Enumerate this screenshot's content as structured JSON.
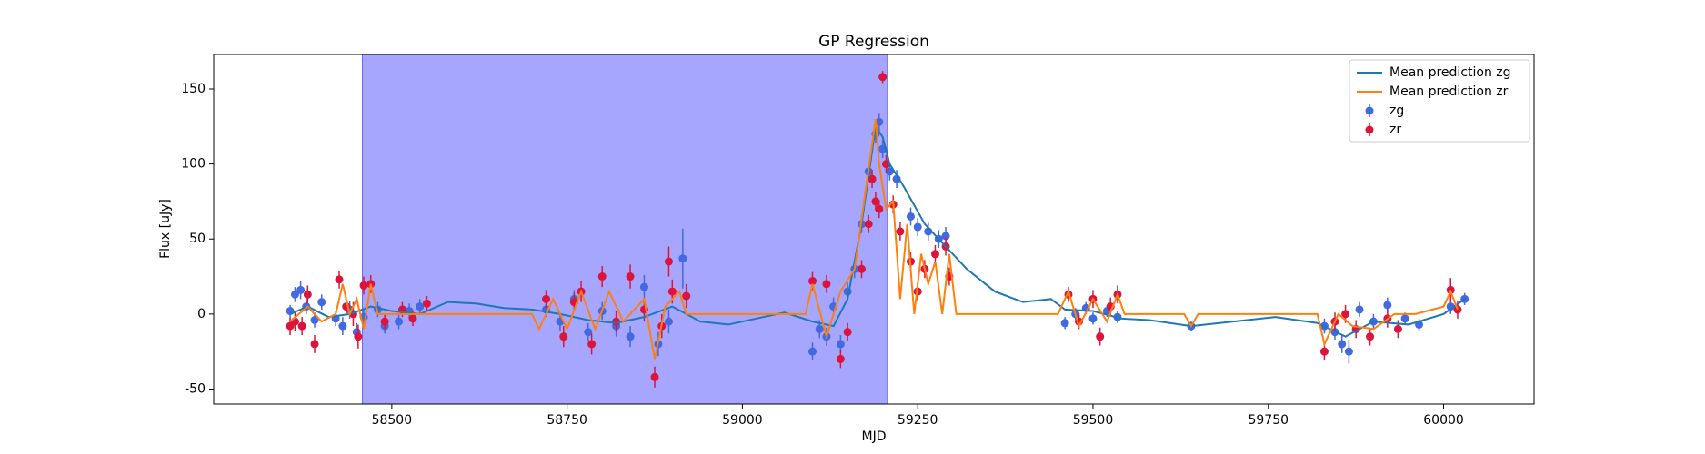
{
  "chart_data": {
    "type": "line",
    "title": "GP Regression",
    "x_label": "MJD",
    "y_label": "Flux [uJy]",
    "xlim": [
      58246,
      60129
    ],
    "ylim": [
      -60,
      173
    ],
    "xticks": [
      58500,
      58750,
      59000,
      59250,
      59500,
      59750,
      60000
    ],
    "yticks": [
      -50,
      0,
      50,
      100,
      150
    ],
    "legend": "upper right",
    "span": {
      "x": [
        58458,
        59207
      ],
      "color": "#0000ff",
      "alpha": 0.35
    },
    "series": [
      {
        "name": "Mean prediction zg",
        "kind": "line",
        "color": "#1f77b4",
        "x": [
          58355,
          58380,
          58410,
          58440,
          58470,
          58500,
          58540,
          58580,
          58620,
          58660,
          58700,
          58740,
          58780,
          58820,
          58860,
          58900,
          58940,
          58980,
          59020,
          59060,
          59100,
          59130,
          59150,
          59170,
          59190,
          59200,
          59210,
          59230,
          59260,
          59290,
          59320,
          59360,
          59400,
          59440,
          59460,
          59500,
          59540,
          59580,
          59640,
          59700,
          59760,
          59820,
          59860,
          59900,
          59950,
          60000,
          60030
        ],
        "values": [
          0,
          5,
          -2,
          0,
          5,
          2,
          0,
          8,
          7,
          4,
          3,
          0,
          -4,
          -6,
          -2,
          5,
          -5,
          -7,
          -3,
          1,
          -5,
          -8,
          10,
          60,
          125,
          118,
          100,
          85,
          60,
          45,
          30,
          15,
          8,
          10,
          3,
          2,
          -3,
          -4,
          -8,
          -5,
          -2,
          -6,
          -15,
          -5,
          -7,
          0,
          10
        ]
      },
      {
        "name": "Mean prediction zr",
        "kind": "line",
        "color": "#ff7f0e",
        "x": [
          58355,
          58380,
          58400,
          58420,
          58430,
          58440,
          58450,
          58460,
          58470,
          58480,
          58700,
          58710,
          58730,
          58750,
          58770,
          58790,
          58810,
          58830,
          58860,
          58875,
          58890,
          58910,
          58920,
          59090,
          59100,
          59120,
          59140,
          59160,
          59175,
          59190,
          59195,
          59205,
          59215,
          59225,
          59235,
          59245,
          59255,
          59265,
          59275,
          59285,
          59295,
          59305,
          59450,
          59465,
          59480,
          59500,
          59520,
          59535,
          59545,
          59630,
          59640,
          59650,
          59820,
          59830,
          59850,
          59870,
          59900,
          59930,
          59960,
          60000,
          60010,
          60020
        ],
        "values": [
          -5,
          5,
          -5,
          0,
          20,
          0,
          10,
          -10,
          20,
          0,
          0,
          -10,
          10,
          -10,
          15,
          -10,
          15,
          -5,
          10,
          -30,
          5,
          15,
          0,
          0,
          20,
          -15,
          15,
          30,
          80,
          130,
          100,
          70,
          75,
          10,
          60,
          0,
          40,
          20,
          35,
          0,
          40,
          0,
          0,
          15,
          -8,
          10,
          -5,
          13,
          0,
          0,
          -8,
          0,
          0,
          -20,
          0,
          -8,
          -10,
          0,
          0,
          5,
          15,
          3
        ]
      },
      {
        "name": "zg",
        "kind": "errorbar",
        "color": "#4169e1",
        "x": [
          58355,
          58362,
          58370,
          58378,
          58390,
          58400,
          58420,
          58430,
          58440,
          58450,
          58460,
          58480,
          58490,
          58510,
          58525,
          58540,
          58720,
          58740,
          58760,
          58780,
          58800,
          58820,
          58840,
          58860,
          58880,
          58895,
          58915,
          59100,
          59110,
          59120,
          59130,
          59140,
          59150,
          59160,
          59170,
          59180,
          59190,
          59195,
          59200,
          59210,
          59220,
          59240,
          59250,
          59265,
          59280,
          59290,
          59460,
          59475,
          59490,
          59500,
          59520,
          59535,
          59640,
          59830,
          59845,
          59855,
          59865,
          59880,
          59900,
          59920,
          59945,
          59965,
          60010,
          60030
        ],
        "values": [
          2,
          13,
          16,
          5,
          -4,
          8,
          -3,
          -8,
          3,
          -12,
          -2,
          3,
          -8,
          -5,
          2,
          5,
          3,
          -5,
          10,
          -12,
          2,
          -8,
          -15,
          18,
          -20,
          -5,
          37,
          -25,
          -10,
          -15,
          5,
          -20,
          15,
          30,
          60,
          95,
          120,
          128,
          110,
          95,
          90,
          65,
          58,
          55,
          50,
          52,
          -6,
          0,
          4,
          -3,
          2,
          -2,
          -8,
          -8,
          -12,
          -20,
          -25,
          3,
          -5,
          6,
          -3,
          -7,
          5,
          10
        ],
        "errors": [
          4,
          5,
          6,
          5,
          5,
          5,
          5,
          6,
          6,
          6,
          6,
          5,
          5,
          5,
          5,
          5,
          5,
          6,
          6,
          6,
          6,
          7,
          7,
          8,
          8,
          8,
          20,
          6,
          6,
          6,
          6,
          6,
          6,
          6,
          6,
          6,
          6,
          6,
          6,
          6,
          6,
          6,
          6,
          6,
          6,
          6,
          4,
          4,
          4,
          4,
          4,
          4,
          3,
          5,
          5,
          6,
          8,
          5,
          5,
          5,
          4,
          4,
          5,
          4
        ]
      },
      {
        "name": "zr",
        "kind": "errorbar",
        "color": "#dc143c",
        "x": [
          58355,
          58362,
          58372,
          58380,
          58390,
          58425,
          58435,
          58445,
          58452,
          58460,
          58470,
          58490,
          58515,
          58530,
          58550,
          58720,
          58745,
          58760,
          58770,
          58785,
          58800,
          58820,
          58840,
          58860,
          58875,
          58885,
          58895,
          58900,
          58920,
          59100,
          59120,
          59140,
          59150,
          59170,
          59180,
          59185,
          59190,
          59195,
          59200,
          59205,
          59215,
          59225,
          59240,
          59250,
          59260,
          59275,
          59290,
          59295,
          59465,
          59480,
          59500,
          59510,
          59525,
          59535,
          59830,
          59845,
          59860,
          59875,
          59895,
          59920,
          59935,
          60010,
          60020
        ],
        "values": [
          -8,
          -5,
          -8,
          13,
          -20,
          23,
          5,
          0,
          -15,
          19,
          20,
          -5,
          3,
          -3,
          7,
          10,
          -15,
          8,
          15,
          -20,
          25,
          -5,
          25,
          3,
          -42,
          -8,
          35,
          15,
          12,
          22,
          20,
          -30,
          -12,
          30,
          60,
          90,
          75,
          70,
          158,
          100,
          73,
          55,
          35,
          15,
          30,
          40,
          45,
          25,
          13,
          -5,
          10,
          -15,
          5,
          13,
          -25,
          -5,
          0,
          -10,
          -15,
          -3,
          -10,
          16,
          3
        ],
        "errors": [
          6,
          6,
          6,
          6,
          6,
          6,
          6,
          8,
          8,
          6,
          6,
          5,
          5,
          5,
          5,
          6,
          7,
          6,
          7,
          7,
          7,
          7,
          8,
          8,
          7,
          8,
          10,
          8,
          8,
          6,
          6,
          6,
          6,
          6,
          6,
          6,
          6,
          6,
          4,
          6,
          6,
          6,
          6,
          6,
          6,
          6,
          6,
          6,
          5,
          5,
          6,
          6,
          6,
          6,
          6,
          6,
          6,
          6,
          6,
          6,
          6,
          8,
          6
        ]
      }
    ]
  }
}
